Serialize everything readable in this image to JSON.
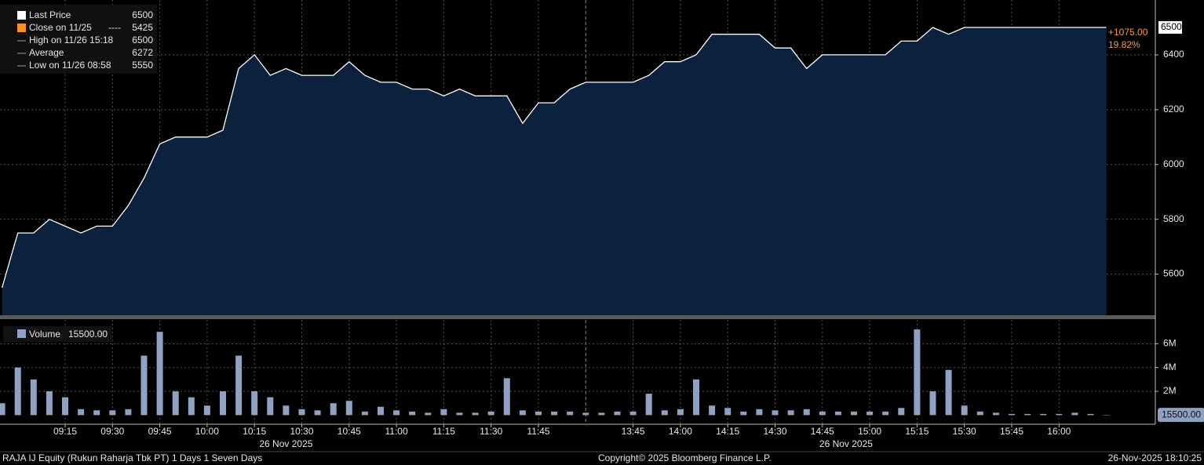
{
  "chart_data": [
    {
      "type": "area",
      "x": [
        "08:55",
        "09:00",
        "09:05",
        "09:10",
        "09:15",
        "09:20",
        "09:25",
        "09:30",
        "09:35",
        "09:40",
        "09:45",
        "09:50",
        "09:55",
        "10:00",
        "10:05",
        "10:10",
        "10:15",
        "10:20",
        "10:25",
        "10:30",
        "10:35",
        "10:40",
        "10:45",
        "10:50",
        "10:55",
        "11:00",
        "11:05",
        "11:10",
        "11:15",
        "11:20",
        "11:25",
        "11:30",
        "11:35",
        "11:40",
        "11:45",
        "11:50",
        "11:55",
        "13:30",
        "13:35",
        "13:40",
        "13:45",
        "13:50",
        "13:55",
        "14:00",
        "14:05",
        "14:10",
        "14:15",
        "14:20",
        "14:25",
        "14:30",
        "14:35",
        "14:40",
        "14:45",
        "14:50",
        "14:55",
        "15:00",
        "15:05",
        "15:10",
        "15:15",
        "15:20",
        "15:25",
        "15:30",
        "15:35",
        "15:40",
        "15:45",
        "15:50",
        "15:55",
        "16:00",
        "16:05",
        "16:10",
        "16:15"
      ],
      "series": [
        {
          "name": "Last Price",
          "color": "#ffffff",
          "fill": "#0b213d",
          "values": [
            5550,
            5750,
            5750,
            5800,
            5775,
            5750,
            5775,
            5775,
            5850,
            5950,
            6075,
            6100,
            6100,
            6100,
            6125,
            6350,
            6400,
            6325,
            6350,
            6325,
            6325,
            6325,
            6375,
            6325,
            6300,
            6300,
            6275,
            6275,
            6250,
            6275,
            6250,
            6250,
            6250,
            6150,
            6225,
            6225,
            6275,
            6300,
            6300,
            6300,
            6300,
            6325,
            6375,
            6375,
            6400,
            6475,
            6475,
            6475,
            6475,
            6425,
            6425,
            6350,
            6400,
            6400,
            6400,
            6400,
            6400,
            6450,
            6450,
            6500,
            6475,
            6500,
            6500,
            6500,
            6500,
            6500,
            6500,
            6500,
            6500,
            6500,
            6500
          ]
        }
      ],
      "stats": [
        {
          "label": "Close on 11/25",
          "marker": "----",
          "value": 5425,
          "color": "#f7941d"
        },
        {
          "label": "High on 11/26 15:18",
          "value": 6500,
          "color": "#9a9a9a"
        },
        {
          "label": "Average",
          "value": 6272,
          "color": "#9a9a9a"
        },
        {
          "label": "Low on 11/26 08:58",
          "value": 5550,
          "color": "#9a9a9a"
        }
      ],
      "annotations": [
        "+1075.00",
        "19.82%"
      ],
      "ylim": [
        5450,
        6600
      ],
      "yticks": [
        5600,
        5800,
        6000,
        6200,
        6400
      ],
      "xticks": [
        "09:15",
        "09:30",
        "09:45",
        "10:00",
        "10:15",
        "10:30",
        "10:45",
        "11:00",
        "11:15",
        "11:30",
        "11:45",
        "13:45",
        "14:00",
        "14:15",
        "14:30",
        "14:45",
        "15:00",
        "15:15",
        "15:30",
        "15:45",
        "16:00"
      ],
      "grid": true
    },
    {
      "type": "bar",
      "x": [
        "08:55",
        "09:00",
        "09:05",
        "09:10",
        "09:15",
        "09:20",
        "09:25",
        "09:30",
        "09:35",
        "09:40",
        "09:45",
        "09:50",
        "09:55",
        "10:00",
        "10:05",
        "10:10",
        "10:15",
        "10:20",
        "10:25",
        "10:30",
        "10:35",
        "10:40",
        "10:45",
        "10:50",
        "10:55",
        "11:00",
        "11:05",
        "11:10",
        "11:15",
        "11:20",
        "11:25",
        "11:30",
        "11:35",
        "11:40",
        "11:45",
        "11:50",
        "11:55",
        "13:30",
        "13:35",
        "13:40",
        "13:45",
        "13:50",
        "13:55",
        "14:00",
        "14:05",
        "14:10",
        "14:15",
        "14:20",
        "14:25",
        "14:30",
        "14:35",
        "14:40",
        "14:45",
        "14:50",
        "14:55",
        "15:00",
        "15:05",
        "15:10",
        "15:15",
        "15:20",
        "15:25",
        "15:30",
        "15:35",
        "15:40",
        "15:45",
        "15:50",
        "15:55",
        "16:00",
        "16:05",
        "16:10",
        "16:15"
      ],
      "series": [
        {
          "name": "Volume",
          "color": "#8fa2c4",
          "values": [
            1000000,
            4000000,
            3000000,
            2000000,
            1500000,
            500000,
            400000,
            400000,
            500000,
            5000000,
            7000000,
            2000000,
            1500000,
            800000,
            2000000,
            5000000,
            2000000,
            1500000,
            800000,
            500000,
            400000,
            1000000,
            1200000,
            300000,
            700000,
            400000,
            300000,
            200000,
            500000,
            200000,
            200000,
            300000,
            3100000,
            400000,
            300000,
            300000,
            300000,
            200000,
            200000,
            300000,
            300000,
            1800000,
            400000,
            500000,
            3000000,
            800000,
            600000,
            300000,
            500000,
            400000,
            400000,
            500000,
            300000,
            300000,
            300000,
            300000,
            300000,
            600000,
            7200000,
            2000000,
            3800000,
            800000,
            300000,
            200000,
            100000,
            100000,
            100000,
            100000,
            200000,
            100000,
            15500
          ]
        }
      ],
      "value_label": "15500.00",
      "ylim": [
        -700000,
        8000000
      ],
      "yticks": [
        {
          "value": 2000000,
          "label": "2M"
        },
        {
          "value": 4000000,
          "label": "4M"
        },
        {
          "value": 6000000,
          "label": "6M"
        }
      ],
      "xticks": [
        "09:15",
        "09:30",
        "09:45",
        "10:00",
        "10:15",
        "10:30",
        "10:45",
        "11:00",
        "11:15",
        "11:30",
        "11:45",
        "13:45",
        "14:00",
        "14:15",
        "14:30",
        "14:45",
        "15:00",
        "15:15",
        "15:30",
        "15:45",
        "16:00"
      ],
      "x_group_labels": [
        "26 Nov 2025",
        "26 Nov 2025"
      ],
      "grid": true
    }
  ],
  "footer": {
    "left": "RAJA IJ Equity (Rukun Raharja Tbk PT) 1 Days 1 Seven Days",
    "center": "Copyright© 2025 Bloomberg Finance L.P.",
    "right": "26-Nov-2025 18:10:25"
  }
}
